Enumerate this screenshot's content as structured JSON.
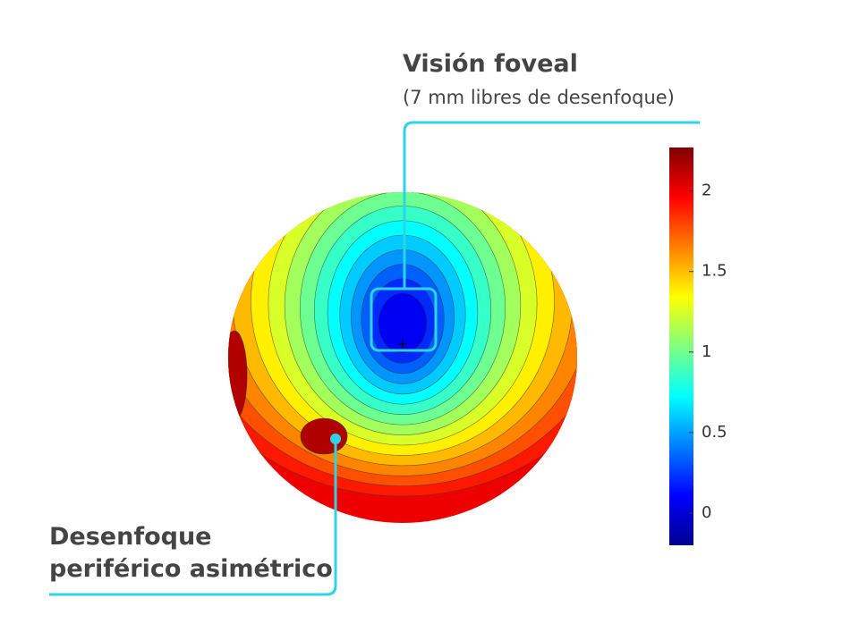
{
  "chart_data": {
    "type": "contour",
    "clim": [
      -0.2,
      2.27
    ],
    "cticks": [
      0,
      0.5,
      1,
      1.5,
      2
    ]
  },
  "annotations": {
    "foveal": {
      "title": "Visión foveal",
      "subtitle": "(7 mm libres de desenfoque)"
    },
    "peripheral": {
      "lines": [
        "Desenfoque",
        "periférico asimétrico"
      ]
    }
  }
}
